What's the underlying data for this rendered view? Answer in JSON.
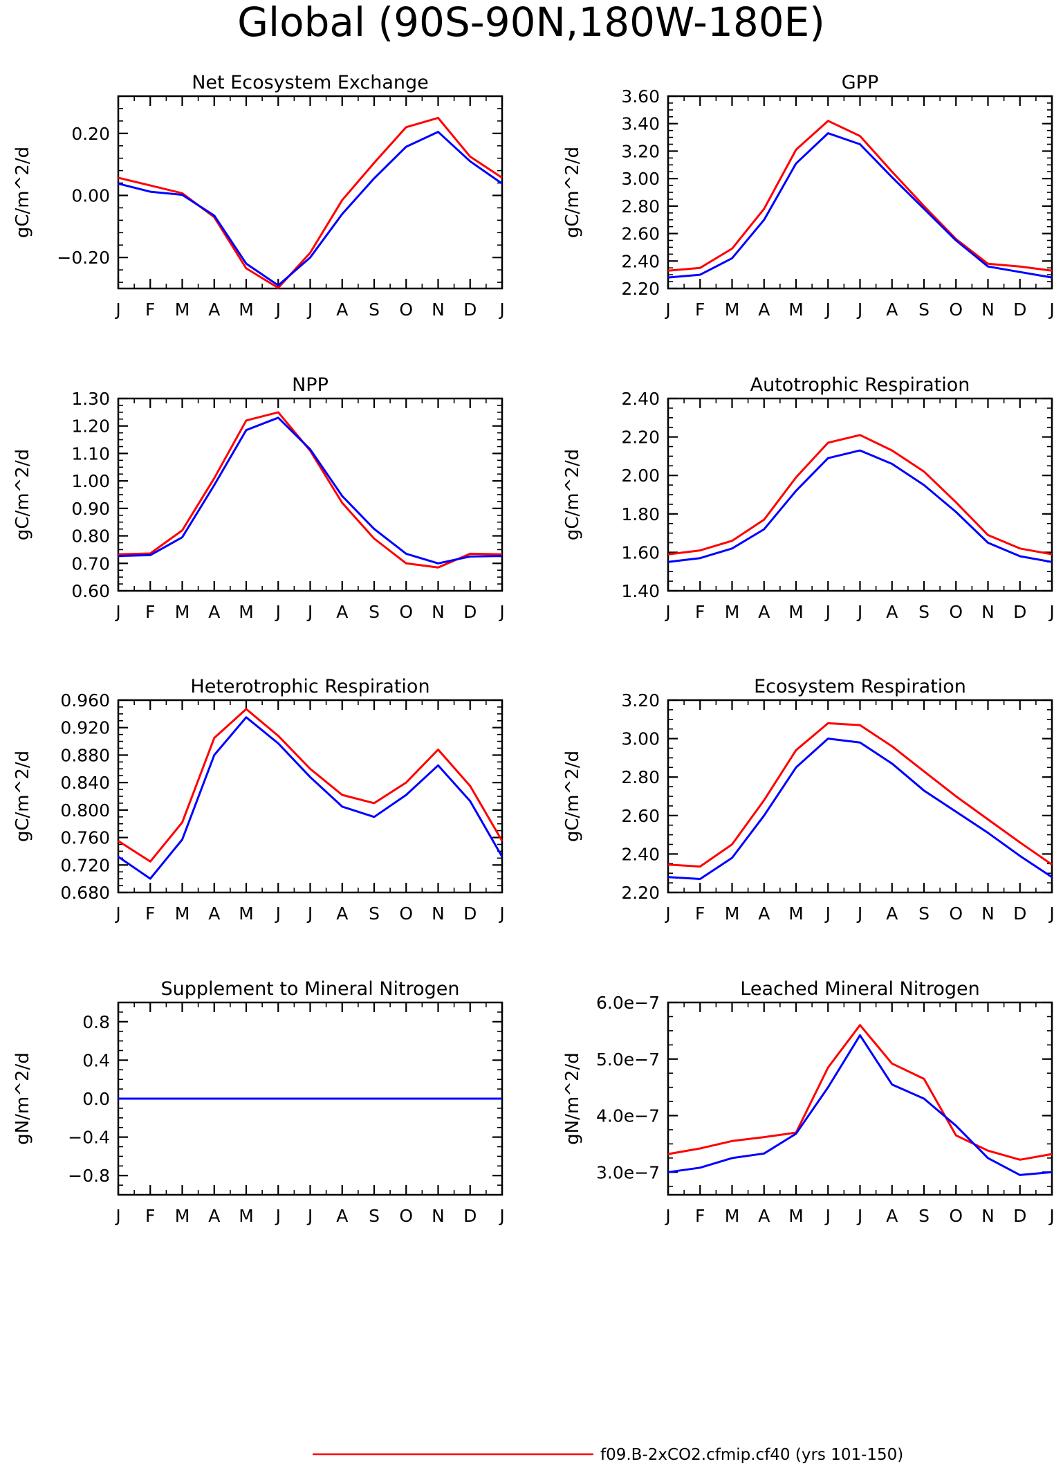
{
  "main_title": "Global (90S-90N,180W-180E)",
  "colors": {
    "red": "#ff0000",
    "blue": "#0000ff"
  },
  "legend": [
    {
      "color": "#ff0000",
      "label": "f09.B-2xCO2.cfmip.cf40 (yrs 101-150)"
    }
  ],
  "chart_data": [
    {
      "type": "line",
      "title": "Net Ecosystem Exchange",
      "ylabel": "gC/m^2/d",
      "categories": [
        "J",
        "F",
        "M",
        "A",
        "M",
        "J",
        "J",
        "A",
        "S",
        "O",
        "N",
        "D",
        "J"
      ],
      "ylim": [
        -0.3,
        0.32
      ],
      "yticks": [
        -0.2,
        0.0,
        0.2
      ],
      "ytick_labels": [
        "−0.20",
        "0.00",
        "0.20"
      ],
      "yminor": 0.04,
      "series": [
        {
          "color": "#ff0000",
          "values": [
            0.057,
            0.032,
            0.007,
            -0.07,
            -0.235,
            -0.298,
            -0.185,
            -0.015,
            0.105,
            0.22,
            0.25,
            0.125,
            0.057
          ]
        },
        {
          "color": "#0000ff",
          "values": [
            0.038,
            0.012,
            0.002,
            -0.065,
            -0.22,
            -0.29,
            -0.2,
            -0.06,
            0.055,
            0.157,
            0.205,
            0.11,
            0.038
          ]
        }
      ]
    },
    {
      "type": "line",
      "title": "GPP",
      "ylabel": "gC/m^2/d",
      "categories": [
        "J",
        "F",
        "M",
        "A",
        "M",
        "J",
        "J",
        "A",
        "S",
        "O",
        "N",
        "D",
        "J"
      ],
      "ylim": [
        2.2,
        3.6
      ],
      "yticks": [
        2.2,
        2.4,
        2.6,
        2.8,
        3.0,
        3.2,
        3.4,
        3.6
      ],
      "ytick_labels": [
        "2.20",
        "2.40",
        "2.60",
        "2.80",
        "3.00",
        "3.20",
        "3.40",
        "3.60"
      ],
      "yminor": 0.05,
      "series": [
        {
          "color": "#ff0000",
          "values": [
            2.33,
            2.35,
            2.49,
            2.78,
            3.21,
            3.42,
            3.31,
            3.05,
            2.8,
            2.56,
            2.38,
            2.36,
            2.33
          ]
        },
        {
          "color": "#0000ff",
          "values": [
            2.28,
            2.3,
            2.42,
            2.7,
            3.11,
            3.33,
            3.25,
            3.01,
            2.78,
            2.55,
            2.36,
            2.32,
            2.28
          ]
        }
      ]
    },
    {
      "type": "line",
      "title": "NPP",
      "ylabel": "gC/m^2/d",
      "categories": [
        "J",
        "F",
        "M",
        "A",
        "M",
        "J",
        "J",
        "A",
        "S",
        "O",
        "N",
        "D",
        "J"
      ],
      "ylim": [
        0.6,
        1.3
      ],
      "yticks": [
        0.6,
        0.7,
        0.8,
        0.9,
        1.0,
        1.1,
        1.2,
        1.3
      ],
      "ytick_labels": [
        "0.60",
        "0.70",
        "0.80",
        "0.90",
        "1.00",
        "1.10",
        "1.20",
        "1.30"
      ],
      "yminor": 0.025,
      "series": [
        {
          "color": "#ff0000",
          "values": [
            0.733,
            0.736,
            0.82,
            1.01,
            1.22,
            1.25,
            1.11,
            0.92,
            0.79,
            0.7,
            0.685,
            0.735,
            0.733
          ]
        },
        {
          "color": "#0000ff",
          "values": [
            0.727,
            0.73,
            0.795,
            0.985,
            1.185,
            1.23,
            1.115,
            0.945,
            0.825,
            0.735,
            0.7,
            0.725,
            0.727
          ]
        }
      ]
    },
    {
      "type": "line",
      "title": "Autotrophic Respiration",
      "ylabel": "gC/m^2/d",
      "categories": [
        "J",
        "F",
        "M",
        "A",
        "M",
        "J",
        "J",
        "A",
        "S",
        "O",
        "N",
        "D",
        "J"
      ],
      "ylim": [
        1.4,
        2.4
      ],
      "yticks": [
        1.4,
        1.6,
        1.8,
        2.0,
        2.2,
        2.4
      ],
      "ytick_labels": [
        "1.40",
        "1.60",
        "1.80",
        "2.00",
        "2.20",
        "2.40"
      ],
      "yminor": 0.05,
      "series": [
        {
          "color": "#ff0000",
          "values": [
            1.59,
            1.61,
            1.66,
            1.77,
            1.99,
            2.17,
            2.21,
            2.13,
            2.02,
            1.86,
            1.69,
            1.62,
            1.59
          ]
        },
        {
          "color": "#0000ff",
          "values": [
            1.55,
            1.57,
            1.62,
            1.72,
            1.92,
            2.09,
            2.13,
            2.06,
            1.95,
            1.81,
            1.65,
            1.58,
            1.55
          ]
        }
      ]
    },
    {
      "type": "line",
      "title": "Heterotrophic Respiration",
      "ylabel": "gC/m^2/d",
      "categories": [
        "J",
        "F",
        "M",
        "A",
        "M",
        "J",
        "J",
        "A",
        "S",
        "O",
        "N",
        "D",
        "J"
      ],
      "ylim": [
        0.68,
        0.96
      ],
      "yticks": [
        0.68,
        0.72,
        0.76,
        0.8,
        0.84,
        0.88,
        0.92,
        0.96
      ],
      "ytick_labels": [
        "0.680",
        "0.720",
        "0.760",
        "0.800",
        "0.840",
        "0.880",
        "0.920",
        "0.960"
      ],
      "yminor": 0.01,
      "series": [
        {
          "color": "#ff0000",
          "values": [
            0.755,
            0.725,
            0.782,
            0.905,
            0.947,
            0.908,
            0.86,
            0.822,
            0.81,
            0.84,
            0.888,
            0.835,
            0.755
          ]
        },
        {
          "color": "#0000ff",
          "values": [
            0.732,
            0.7,
            0.757,
            0.88,
            0.935,
            0.897,
            0.848,
            0.805,
            0.79,
            0.822,
            0.865,
            0.813,
            0.732
          ]
        }
      ]
    },
    {
      "type": "line",
      "title": "Ecosystem Respiration",
      "ylabel": "gC/m^2/d",
      "categories": [
        "J",
        "F",
        "M",
        "A",
        "M",
        "J",
        "J",
        "A",
        "S",
        "O",
        "N",
        "D",
        "J"
      ],
      "ylim": [
        2.2,
        3.2
      ],
      "yticks": [
        2.2,
        2.4,
        2.6,
        2.8,
        3.0,
        3.2
      ],
      "ytick_labels": [
        "2.20",
        "2.40",
        "2.60",
        "2.80",
        "3.00",
        "3.20"
      ],
      "yminor": 0.05,
      "series": [
        {
          "color": "#ff0000",
          "values": [
            2.345,
            2.335,
            2.45,
            2.68,
            2.94,
            3.08,
            3.07,
            2.96,
            2.83,
            2.7,
            2.58,
            2.46,
            2.345
          ]
        },
        {
          "color": "#0000ff",
          "values": [
            2.28,
            2.27,
            2.38,
            2.6,
            2.85,
            3.0,
            2.98,
            2.87,
            2.73,
            2.62,
            2.51,
            2.39,
            2.28
          ]
        }
      ]
    },
    {
      "type": "line",
      "title": "Supplement to Mineral Nitrogen",
      "ylabel": "gN/m^2/d",
      "categories": [
        "J",
        "F",
        "M",
        "A",
        "M",
        "J",
        "J",
        "A",
        "S",
        "O",
        "N",
        "D",
        "J"
      ],
      "ylim": [
        -1.0,
        1.0
      ],
      "yticks": [
        -0.8,
        -0.4,
        0.0,
        0.4,
        0.8
      ],
      "ytick_labels": [
        "−0.8",
        "−0.4",
        "0.0",
        "0.4",
        "0.8"
      ],
      "yminor": 0.1,
      "series": [
        {
          "color": "#ff0000",
          "values": [
            0,
            0,
            0,
            0,
            0,
            0,
            0,
            0,
            0,
            0,
            0,
            0,
            0
          ]
        },
        {
          "color": "#0000ff",
          "values": [
            0,
            0,
            0,
            0,
            0,
            0,
            0,
            0,
            0,
            0,
            0,
            0,
            0
          ]
        }
      ]
    },
    {
      "type": "line",
      "title": "Leached Mineral Nitrogen",
      "ylabel": "gN/m^2/d",
      "categories": [
        "J",
        "F",
        "M",
        "A",
        "M",
        "J",
        "J",
        "A",
        "S",
        "O",
        "N",
        "D",
        "J"
      ],
      "ylim": [
        2.6e-07,
        6e-07
      ],
      "yticks": [
        3e-07,
        4e-07,
        5e-07,
        6e-07
      ],
      "ytick_labels": [
        "3.0e−7",
        "4.0e−7",
        "5.0e−7",
        "6.0e−7"
      ],
      "yminor": 2.5e-08,
      "series": [
        {
          "color": "#ff0000",
          "values": [
            3.32e-07,
            3.42e-07,
            3.55e-07,
            3.62e-07,
            3.7e-07,
            4.85e-07,
            5.6e-07,
            4.92e-07,
            4.65e-07,
            3.65e-07,
            3.38e-07,
            3.22e-07,
            3.32e-07
          ]
        },
        {
          "color": "#0000ff",
          "values": [
            3e-07,
            3.08e-07,
            3.25e-07,
            3.33e-07,
            3.68e-07,
            4.5e-07,
            5.42e-07,
            4.55e-07,
            4.3e-07,
            3.82e-07,
            3.25e-07,
            2.95e-07,
            3e-07
          ]
        }
      ]
    }
  ]
}
